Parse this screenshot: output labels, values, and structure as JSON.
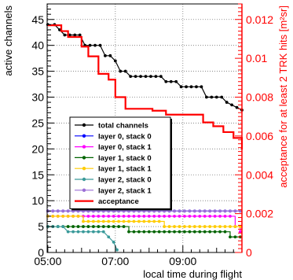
{
  "chart_data": {
    "type": "line",
    "title": "",
    "xlabel": "local time during flight",
    "ylabel": "active channels",
    "y2label": "acceptance for at least 2 TRK hits [m²sr]",
    "xlim": [
      4.98,
      10.75
    ],
    "ylim": [
      0,
      48
    ],
    "y2lim": [
      0,
      0.0128
    ],
    "grid": true,
    "legend_position": "lower-left",
    "x_ticks": [
      {
        "v": 5,
        "label": "05:00"
      },
      {
        "v": 7,
        "label": "07:00"
      },
      {
        "v": 9,
        "label": "09:00"
      }
    ],
    "y_ticks": [
      0,
      5,
      10,
      15,
      20,
      25,
      30,
      35,
      40,
      45
    ],
    "y2_ticks": [
      {
        "v": 0,
        "label": "0"
      },
      {
        "v": 0.002,
        "label": "0.002"
      },
      {
        "v": 0.004,
        "label": "0.004"
      },
      {
        "v": 0.006,
        "label": "0.006"
      },
      {
        "v": 0.008,
        "label": "0.008"
      },
      {
        "v": 0.01,
        "label": "0.01"
      },
      {
        "v": 0.012,
        "label": "0.012"
      }
    ],
    "series": [
      {
        "name": "total channels",
        "color": "#000000",
        "marker": true,
        "step": false,
        "axis": "left",
        "points": [
          [
            5.0,
            44
          ],
          [
            5.2,
            44
          ],
          [
            5.35,
            43
          ],
          [
            5.5,
            42
          ],
          [
            5.65,
            42
          ],
          [
            5.8,
            42
          ],
          [
            5.95,
            42
          ],
          [
            6.1,
            40
          ],
          [
            6.25,
            40
          ],
          [
            6.4,
            40
          ],
          [
            6.55,
            40
          ],
          [
            6.7,
            38
          ],
          [
            6.85,
            38
          ],
          [
            7.0,
            37
          ],
          [
            7.15,
            35
          ],
          [
            7.3,
            35
          ],
          [
            7.45,
            34
          ],
          [
            7.6,
            34
          ],
          [
            7.75,
            34
          ],
          [
            7.9,
            34
          ],
          [
            8.05,
            34
          ],
          [
            8.2,
            34
          ],
          [
            8.35,
            34
          ],
          [
            8.5,
            33
          ],
          [
            8.65,
            33
          ],
          [
            8.8,
            33
          ],
          [
            8.95,
            32
          ],
          [
            9.1,
            32
          ],
          [
            9.25,
            32
          ],
          [
            9.4,
            32
          ],
          [
            9.55,
            32
          ],
          [
            9.7,
            30
          ],
          [
            9.85,
            30
          ],
          [
            10.0,
            30
          ],
          [
            10.15,
            30
          ],
          [
            10.3,
            29
          ],
          [
            10.45,
            28.5
          ],
          [
            10.6,
            28
          ],
          [
            10.75,
            27.5
          ]
        ]
      },
      {
        "name": "layer 0, stack 0",
        "color": "#0000ff",
        "marker": true,
        "step": true,
        "axis": "left",
        "points": [
          [
            5.0,
            8
          ],
          [
            5.15,
            8
          ],
          [
            5.3,
            8
          ],
          [
            5.45,
            8
          ],
          [
            5.6,
            8
          ],
          [
            5.75,
            8
          ],
          [
            5.9,
            8
          ],
          [
            6.05,
            8
          ],
          [
            6.2,
            8
          ],
          [
            6.35,
            8
          ],
          [
            6.5,
            8
          ],
          [
            6.65,
            8
          ],
          [
            6.8,
            8
          ],
          [
            6.95,
            8
          ],
          [
            7.1,
            8
          ],
          [
            7.25,
            8
          ],
          [
            7.4,
            8
          ],
          [
            7.55,
            8
          ],
          [
            7.7,
            8
          ],
          [
            7.85,
            8
          ],
          [
            8.0,
            8
          ],
          [
            8.15,
            8
          ],
          [
            8.3,
            8
          ],
          [
            8.45,
            8
          ],
          [
            8.6,
            8
          ],
          [
            8.75,
            8
          ],
          [
            8.9,
            8
          ],
          [
            9.05,
            8
          ],
          [
            9.2,
            8
          ],
          [
            9.35,
            8
          ],
          [
            9.5,
            8
          ],
          [
            9.65,
            8
          ],
          [
            9.8,
            8
          ],
          [
            9.95,
            8
          ],
          [
            10.1,
            8
          ],
          [
            10.25,
            8
          ],
          [
            10.4,
            8
          ],
          [
            10.55,
            8
          ],
          [
            10.7,
            8
          ]
        ]
      },
      {
        "name": "layer 0, stack 1",
        "color": "#ff00ff",
        "marker": true,
        "step": true,
        "axis": "left",
        "points": [
          [
            5.0,
            7
          ],
          [
            5.15,
            7
          ],
          [
            5.3,
            7
          ],
          [
            5.45,
            7
          ],
          [
            5.6,
            7
          ],
          [
            5.75,
            7
          ],
          [
            5.9,
            7
          ],
          [
            6.05,
            7
          ],
          [
            6.2,
            7
          ],
          [
            6.35,
            7
          ],
          [
            6.5,
            7
          ],
          [
            6.65,
            7
          ],
          [
            6.8,
            7
          ],
          [
            6.95,
            7
          ],
          [
            7.1,
            7
          ],
          [
            7.25,
            7
          ],
          [
            7.4,
            7
          ],
          [
            7.55,
            7
          ],
          [
            7.7,
            7
          ],
          [
            7.85,
            7
          ],
          [
            8.0,
            7
          ],
          [
            8.15,
            7
          ],
          [
            8.3,
            7
          ],
          [
            8.45,
            7
          ],
          [
            8.6,
            7
          ],
          [
            8.75,
            7
          ],
          [
            8.9,
            7
          ],
          [
            9.05,
            7
          ],
          [
            9.2,
            7
          ],
          [
            9.35,
            7
          ],
          [
            9.5,
            7
          ],
          [
            9.65,
            7
          ],
          [
            9.8,
            7
          ],
          [
            9.95,
            7
          ],
          [
            10.1,
            7
          ],
          [
            10.25,
            7
          ],
          [
            10.4,
            7
          ],
          [
            10.55,
            5
          ],
          [
            10.7,
            4
          ]
        ]
      },
      {
        "name": "layer 1, stack 0",
        "color": "#006400",
        "marker": true,
        "step": true,
        "axis": "left",
        "points": [
          [
            5.0,
            5
          ],
          [
            5.15,
            5
          ],
          [
            5.3,
            5
          ],
          [
            5.45,
            5
          ],
          [
            5.6,
            5
          ],
          [
            5.75,
            5
          ],
          [
            5.9,
            5
          ],
          [
            6.05,
            5
          ],
          [
            6.2,
            5
          ],
          [
            6.35,
            5
          ],
          [
            6.5,
            5
          ],
          [
            6.65,
            5
          ],
          [
            6.8,
            5
          ],
          [
            6.95,
            5
          ],
          [
            7.1,
            5
          ],
          [
            7.25,
            5
          ],
          [
            7.4,
            4
          ],
          [
            7.55,
            4
          ],
          [
            7.7,
            4
          ],
          [
            7.85,
            4
          ],
          [
            8.0,
            4
          ],
          [
            8.15,
            4
          ],
          [
            8.3,
            4
          ],
          [
            8.45,
            4
          ],
          [
            8.6,
            4
          ],
          [
            8.75,
            4
          ],
          [
            8.9,
            4
          ],
          [
            9.05,
            4
          ],
          [
            9.2,
            4
          ],
          [
            9.35,
            4
          ],
          [
            9.5,
            4
          ],
          [
            9.65,
            4
          ],
          [
            9.8,
            4
          ],
          [
            9.95,
            4
          ],
          [
            10.1,
            4
          ],
          [
            10.25,
            4
          ],
          [
            10.4,
            3
          ],
          [
            10.55,
            3
          ],
          [
            10.7,
            3
          ]
        ]
      },
      {
        "name": "layer 1, stack 1",
        "color": "#ffcc00",
        "marker": true,
        "step": true,
        "axis": "left",
        "points": [
          [
            5.0,
            7
          ],
          [
            5.15,
            7
          ],
          [
            5.3,
            7
          ],
          [
            5.45,
            7
          ],
          [
            5.6,
            7
          ],
          [
            5.75,
            7
          ],
          [
            5.9,
            7
          ],
          [
            6.05,
            6
          ],
          [
            6.2,
            6
          ],
          [
            6.35,
            6
          ],
          [
            6.5,
            6
          ],
          [
            6.65,
            6
          ],
          [
            6.8,
            6
          ],
          [
            6.95,
            6
          ],
          [
            7.1,
            6
          ],
          [
            7.25,
            6
          ],
          [
            7.4,
            6
          ],
          [
            7.55,
            6
          ],
          [
            7.7,
            6
          ],
          [
            7.85,
            6
          ],
          [
            8.0,
            6
          ],
          [
            8.15,
            6
          ],
          [
            8.3,
            6
          ],
          [
            8.45,
            5
          ],
          [
            8.6,
            5
          ],
          [
            8.75,
            5
          ],
          [
            8.9,
            5
          ],
          [
            9.05,
            5
          ],
          [
            9.2,
            5
          ],
          [
            9.35,
            5
          ],
          [
            9.5,
            5
          ],
          [
            9.65,
            5
          ],
          [
            9.8,
            5
          ],
          [
            9.95,
            5
          ],
          [
            10.1,
            5
          ],
          [
            10.25,
            5
          ],
          [
            10.4,
            5
          ],
          [
            10.55,
            5
          ],
          [
            10.7,
            5
          ]
        ]
      },
      {
        "name": "layer 2, stack 0",
        "color": "#3a9a9a",
        "marker": true,
        "step": false,
        "axis": "left",
        "points": [
          [
            5.0,
            5
          ],
          [
            5.15,
            5
          ],
          [
            5.3,
            5
          ],
          [
            5.45,
            5
          ],
          [
            5.6,
            4
          ],
          [
            5.75,
            4
          ],
          [
            5.9,
            4
          ],
          [
            6.05,
            4
          ],
          [
            6.2,
            4
          ],
          [
            6.35,
            4
          ],
          [
            6.5,
            4
          ],
          [
            6.65,
            4
          ],
          [
            6.8,
            3
          ],
          [
            6.95,
            2
          ],
          [
            7.05,
            0.5
          ]
        ]
      },
      {
        "name": "layer 2, stack 1",
        "color": "#9b6fd6",
        "marker": true,
        "step": true,
        "axis": "left",
        "points": [
          [
            5.0,
            8
          ],
          [
            5.15,
            8
          ],
          [
            5.3,
            8
          ],
          [
            5.45,
            8
          ],
          [
            5.6,
            8
          ],
          [
            5.75,
            8
          ],
          [
            5.9,
            8
          ],
          [
            6.05,
            8
          ],
          [
            6.2,
            8
          ],
          [
            6.35,
            8
          ],
          [
            6.5,
            8
          ],
          [
            6.65,
            8
          ],
          [
            6.8,
            8
          ],
          [
            6.95,
            8
          ],
          [
            7.1,
            8
          ],
          [
            7.25,
            8
          ],
          [
            7.4,
            8
          ],
          [
            7.55,
            8
          ],
          [
            7.7,
            8
          ],
          [
            7.85,
            8
          ],
          [
            8.0,
            8
          ],
          [
            8.15,
            8
          ],
          [
            8.3,
            8
          ],
          [
            8.45,
            8
          ],
          [
            8.6,
            8
          ],
          [
            8.75,
            8
          ],
          [
            8.9,
            8
          ],
          [
            9.05,
            8
          ],
          [
            9.2,
            8
          ],
          [
            9.35,
            8
          ],
          [
            9.5,
            8
          ],
          [
            9.65,
            8
          ],
          [
            9.8,
            8
          ],
          [
            9.95,
            8
          ],
          [
            10.1,
            8
          ],
          [
            10.25,
            8
          ],
          [
            10.4,
            8
          ],
          [
            10.55,
            8
          ],
          [
            10.7,
            8
          ]
        ]
      },
      {
        "name": "acceptance",
        "color": "#ff0000",
        "marker": false,
        "step": true,
        "axis": "right",
        "points": [
          [
            5.0,
            0.0117
          ],
          [
            5.4,
            0.0114
          ],
          [
            5.6,
            0.0111
          ],
          [
            6.0,
            0.0106
          ],
          [
            6.2,
            0.0101
          ],
          [
            6.5,
            0.0092
          ],
          [
            6.8,
            0.0089
          ],
          [
            7.0,
            0.008
          ],
          [
            7.3,
            0.0074
          ],
          [
            8.1,
            0.0073
          ],
          [
            8.5,
            0.0071
          ],
          [
            9.6,
            0.0067
          ],
          [
            9.9,
            0.0065
          ],
          [
            10.2,
            0.0062
          ],
          [
            10.5,
            0.0059
          ],
          [
            10.75,
            0.0053
          ]
        ]
      }
    ]
  }
}
